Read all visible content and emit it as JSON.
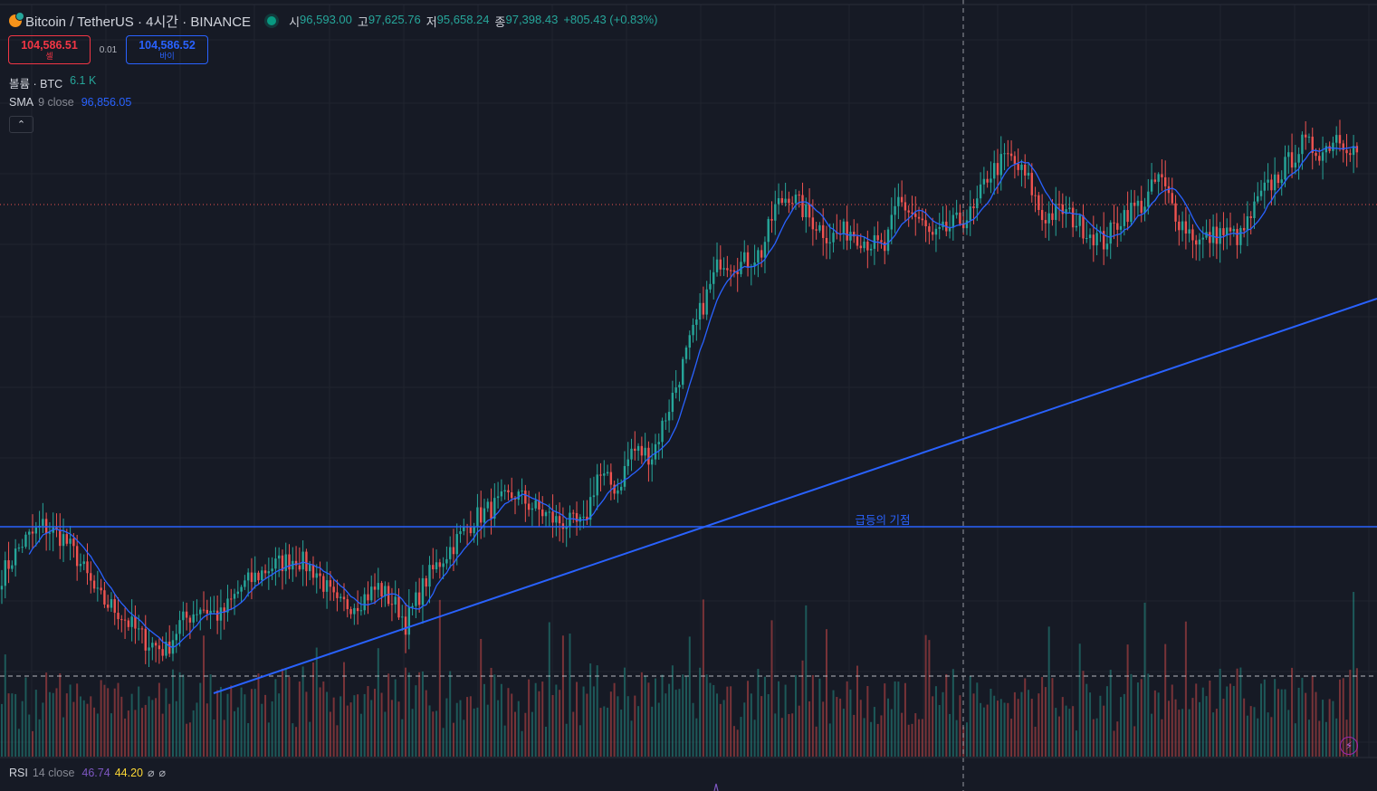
{
  "header": {
    "symbol_title": "Bitcoin / TetherUS · 4시간 · BINANCE",
    "ohlc": [
      {
        "key": "시",
        "value": "96,593.00"
      },
      {
        "key": "고",
        "value": "97,625.76"
      },
      {
        "key": "저",
        "value": "95,658.24"
      },
      {
        "key": "종",
        "value": "97,398.43"
      },
      {
        "key": "",
        "value": "+805.43 (+0.83%)"
      }
    ],
    "up_color": "#26a69a"
  },
  "trade": {
    "sell_price": "104,586.51",
    "sell_label": "셀",
    "spread": "0.01",
    "buy_price": "104,586.52",
    "buy_label": "바이"
  },
  "legends": {
    "volume": {
      "name": "볼륨 · BTC",
      "value": "6.1 K",
      "color": "#26a69a"
    },
    "sma": {
      "name": "SMA",
      "params": "9 close",
      "value": "96,856.05",
      "color": "#2962ff"
    },
    "rsi": {
      "name": "RSI",
      "params": "14 close",
      "value1": "46.74",
      "value2": "44.20",
      "value1_color": "#7e57c2",
      "value2_color": "#fdd835",
      "icons": [
        "⌀",
        "⌀"
      ]
    }
  },
  "collapse_icon": "chevron-up-icon",
  "drawings": {
    "horizontal_line_label": "급등의 기점",
    "line_color": "#2962ff"
  },
  "chart_data": {
    "type": "candlestick",
    "timeframe": "4시간",
    "exchange": "BINANCE",
    "price_trajectory": [
      [
        0,
        93500
      ],
      [
        6,
        94800
      ],
      [
        12,
        95500
      ],
      [
        18,
        95000
      ],
      [
        22,
        94200
      ],
      [
        28,
        92600
      ],
      [
        34,
        92000
      ],
      [
        42,
        90800
      ],
      [
        48,
        90400
      ],
      [
        52,
        91500
      ],
      [
        58,
        92200
      ],
      [
        64,
        91800
      ],
      [
        70,
        93000
      ],
      [
        78,
        93800
      ],
      [
        86,
        94200
      ],
      [
        92,
        93600
      ],
      [
        98,
        92200
      ],
      [
        104,
        92400
      ],
      [
        110,
        93000
      ],
      [
        116,
        92100
      ],
      [
        118,
        91500
      ],
      [
        124,
        93300
      ],
      [
        130,
        94400
      ],
      [
        138,
        95800
      ],
      [
        144,
        96300
      ],
      [
        150,
        96800
      ],
      [
        156,
        96200
      ],
      [
        162,
        95700
      ],
      [
        170,
        95500
      ],
      [
        174,
        97600
      ],
      [
        180,
        97000
      ],
      [
        184,
        98600
      ],
      [
        190,
        98400
      ],
      [
        196,
        100800
      ],
      [
        204,
        104200
      ],
      [
        210,
        106400
      ],
      [
        216,
        106200
      ],
      [
        222,
        106700
      ],
      [
        226,
        108500
      ],
      [
        230,
        109100
      ],
      [
        236,
        108100
      ],
      [
        242,
        107300
      ],
      [
        248,
        107600
      ],
      [
        252,
        107200
      ],
      [
        258,
        106800
      ],
      [
        262,
        108800
      ],
      [
        268,
        108000
      ],
      [
        272,
        107200
      ],
      [
        278,
        107800
      ],
      [
        284,
        108300
      ],
      [
        288,
        109800
      ],
      [
        294,
        110600
      ],
      [
        300,
        109600
      ],
      [
        304,
        108100
      ],
      [
        310,
        108400
      ],
      [
        316,
        107700
      ],
      [
        322,
        107100
      ],
      [
        328,
        108300
      ],
      [
        334,
        108700
      ],
      [
        338,
        109800
      ],
      [
        344,
        108000
      ],
      [
        350,
        107100
      ],
      [
        356,
        107500
      ],
      [
        362,
        107300
      ],
      [
        368,
        109000
      ],
      [
        374,
        110000
      ],
      [
        380,
        111100
      ],
      [
        386,
        110800
      ],
      [
        390,
        111500
      ],
      [
        396,
        110800
      ]
    ],
    "last_price": "104,586.51",
    "horizontal_levels": [
      {
        "label": "급등의 기점"
      }
    ],
    "trendline": "ascending support",
    "sma": {
      "period": 9,
      "source": "close",
      "value": "96,856.05",
      "color": "#2962ff"
    },
    "volume": {
      "last": "6.1 K",
      "unit": "BTC"
    },
    "rsi": {
      "period": 14,
      "source": "close",
      "value": "46.74",
      "ma_value": "44.20"
    },
    "colors": {
      "up": "#26a69a",
      "down": "#ef5350",
      "sma": "#2962ff",
      "drawing": "#2962ff"
    },
    "grid": true
  }
}
